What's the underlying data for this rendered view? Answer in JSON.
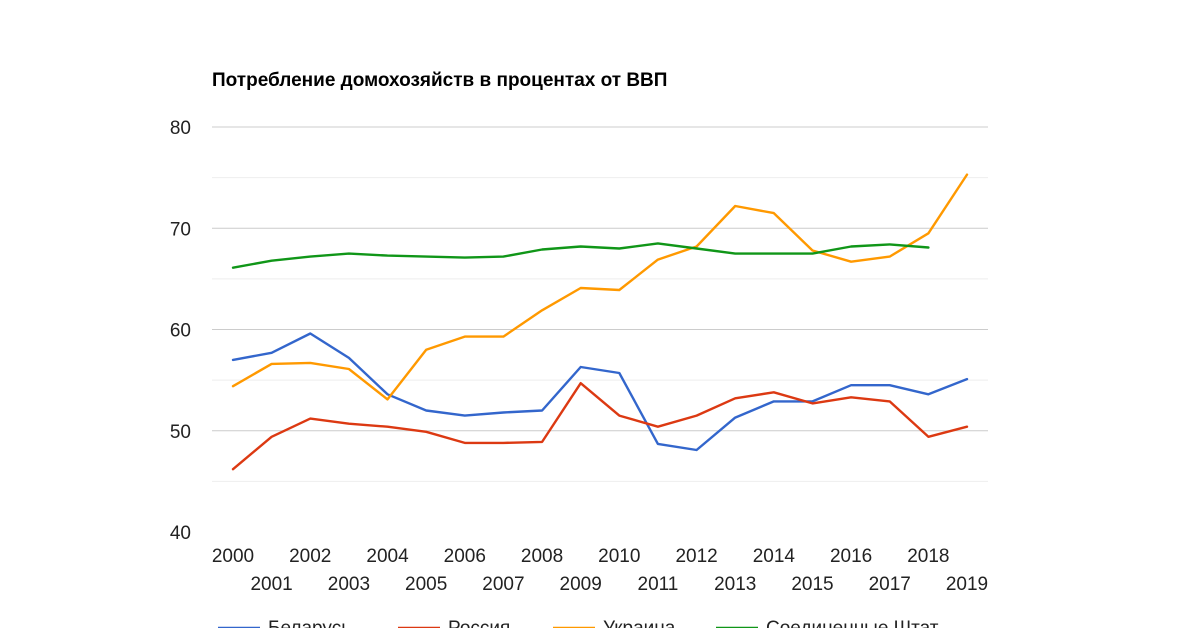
{
  "chart_data": {
    "type": "line",
    "title": "Потребление домохозяйств в процентах от ВВП",
    "xlabel": "",
    "ylabel": "",
    "ylim": [
      40,
      80
    ],
    "yticks": [
      40,
      50,
      60,
      70,
      80
    ],
    "grid": true,
    "legend": "bottom",
    "x": [
      2000,
      2001,
      2002,
      2003,
      2004,
      2005,
      2006,
      2007,
      2008,
      2009,
      2010,
      2011,
      2012,
      2013,
      2014,
      2015,
      2016,
      2017,
      2018,
      2019
    ],
    "x_tick_labels": [
      "2000",
      "2001",
      "2002",
      "2003",
      "2004",
      "2005",
      "2006",
      "2007",
      "2008",
      "2009",
      "2010",
      "2011",
      "2012",
      "2013",
      "2014",
      "2015",
      "2016",
      "2017",
      "2018",
      "2019"
    ],
    "series": [
      {
        "name": "Беларусь",
        "color": "#3366cc",
        "values": [
          57.0,
          57.7,
          59.6,
          57.2,
          53.6,
          52.0,
          51.5,
          51.8,
          52.0,
          56.3,
          55.7,
          48.7,
          48.1,
          51.3,
          52.9,
          52.9,
          54.5,
          54.5,
          53.6,
          55.1
        ]
      },
      {
        "name": "Россия",
        "color": "#dc3912",
        "values": [
          46.2,
          49.4,
          51.2,
          50.7,
          50.4,
          49.9,
          48.8,
          48.8,
          48.9,
          54.7,
          51.5,
          50.4,
          51.5,
          53.2,
          53.8,
          52.7,
          53.3,
          52.9,
          49.4,
          50.4
        ]
      },
      {
        "name": "Украина",
        "color": "#ff9900",
        "values": [
          54.4,
          56.6,
          56.7,
          56.1,
          53.1,
          58.0,
          59.3,
          59.3,
          61.9,
          64.1,
          63.9,
          66.9,
          68.2,
          72.2,
          71.5,
          67.8,
          66.7,
          67.2,
          69.5,
          75.3
        ]
      },
      {
        "name": "Соединенные Штат",
        "color": "#109618",
        "values": [
          66.1,
          66.8,
          67.2,
          67.5,
          67.3,
          67.2,
          67.1,
          67.2,
          67.9,
          68.2,
          68.0,
          68.5,
          68.0,
          67.5,
          67.5,
          67.5,
          68.2,
          68.4,
          68.1,
          null
        ]
      }
    ]
  }
}
